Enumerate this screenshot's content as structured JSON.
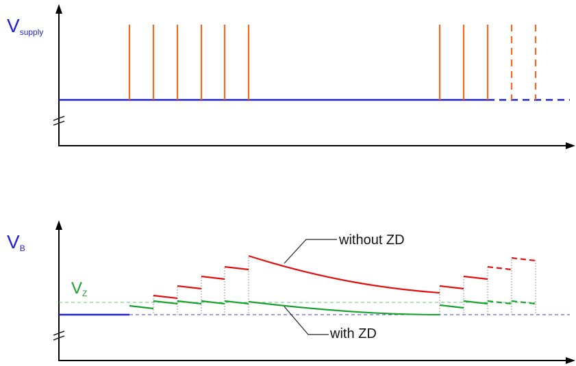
{
  "labels": {
    "top_axis_label_main": "V",
    "top_axis_label_sub": "supply",
    "bottom_axis_label_main": "V",
    "bottom_axis_label_sub": "B",
    "zener_label_main": "V",
    "zener_label_sub": "Z",
    "annotation_without": "without ZD",
    "annotation_with": "with ZD"
  },
  "colors": {
    "axis": "#000000",
    "supply_line": "#1f1fd6",
    "pulse": "#ee6a1c",
    "without_zd": "#e01010",
    "with_zd": "#1aa02e",
    "helper_dotted": "#9a9a9a"
  }
}
